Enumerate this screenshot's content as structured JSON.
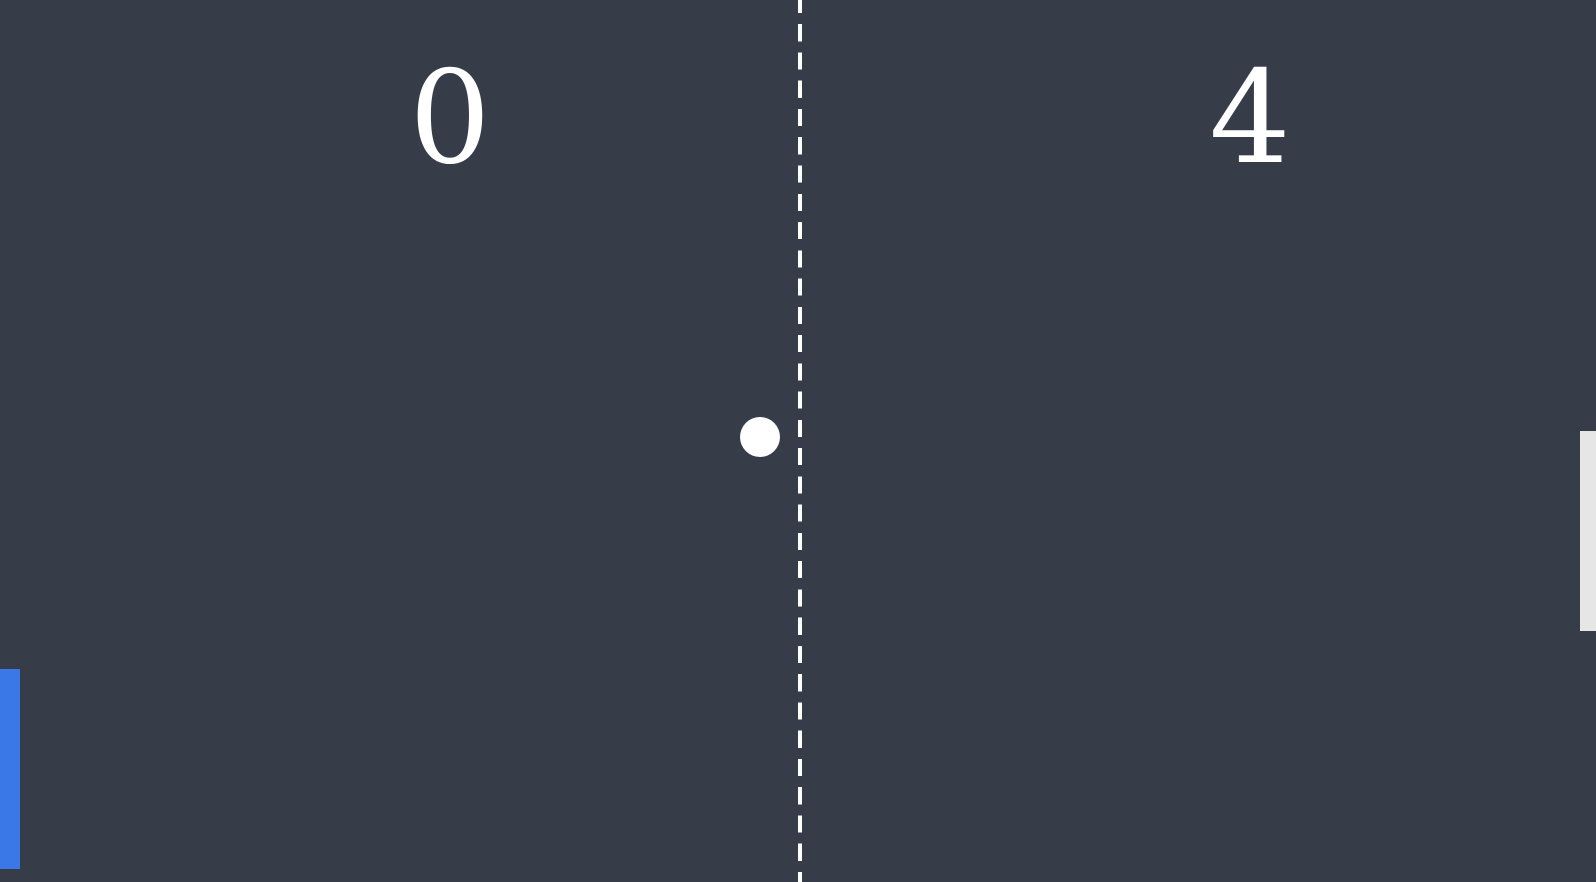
{
  "scores": {
    "left": "0",
    "right": "4"
  },
  "colors": {
    "background": "#373c49",
    "net": "#ffffff",
    "score_text": "#ffffff",
    "left_paddle": "#3b78e7",
    "right_paddle": "#e6e6e6",
    "ball": "#ffffff"
  }
}
